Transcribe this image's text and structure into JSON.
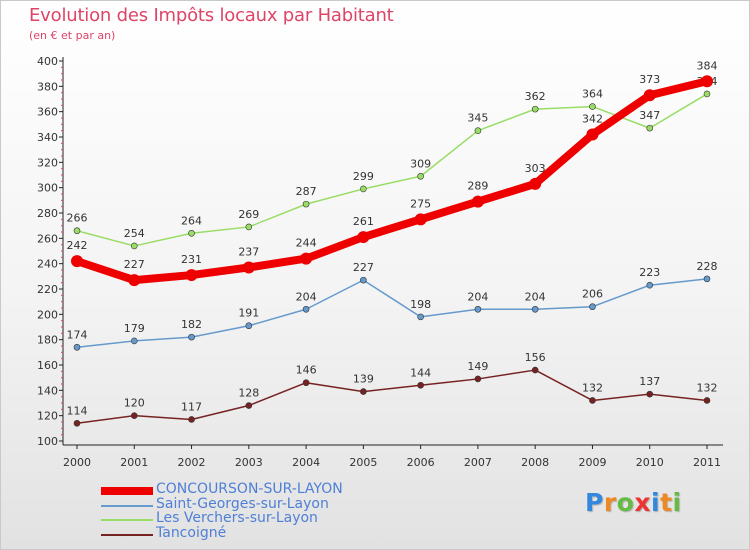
{
  "title": "Evolution des Impôts locaux par Habitant",
  "subtitle": "(en € et par an)",
  "logo": "Proxiti",
  "chart_data": {
    "type": "line",
    "title": "Evolution des Impôts locaux par Habitant",
    "subtitle": "(en € et par an)",
    "x": [
      2000,
      2001,
      2002,
      2003,
      2004,
      2005,
      2006,
      2007,
      2008,
      2009,
      2010,
      2011
    ],
    "ylim": [
      100,
      400
    ],
    "yticks": [
      100,
      120,
      140,
      160,
      180,
      200,
      220,
      240,
      260,
      280,
      300,
      320,
      340,
      360,
      380,
      400
    ],
    "grid": false,
    "legend_position": "bottom",
    "series": [
      {
        "name": "CONCOURSON-SUR-LAYON",
        "color": "#ee0000",
        "values": [
          242,
          227,
          231,
          237,
          244,
          261,
          275,
          289,
          303,
          342,
          373,
          384
        ]
      },
      {
        "name": "Saint-Georges-sur-Layon",
        "color": "#6699cc",
        "values": [
          174,
          179,
          182,
          191,
          204,
          227,
          198,
          204,
          204,
          206,
          223,
          228
        ]
      },
      {
        "name": "Les Verchers-sur-Layon",
        "color": "#99dd66",
        "values": [
          266,
          254,
          264,
          269,
          287,
          299,
          309,
          345,
          362,
          364,
          347,
          374
        ]
      },
      {
        "name": "Tancoigné",
        "color": "#772222",
        "values": [
          114,
          120,
          117,
          128,
          146,
          139,
          144,
          149,
          156,
          132,
          137,
          132
        ]
      }
    ]
  }
}
